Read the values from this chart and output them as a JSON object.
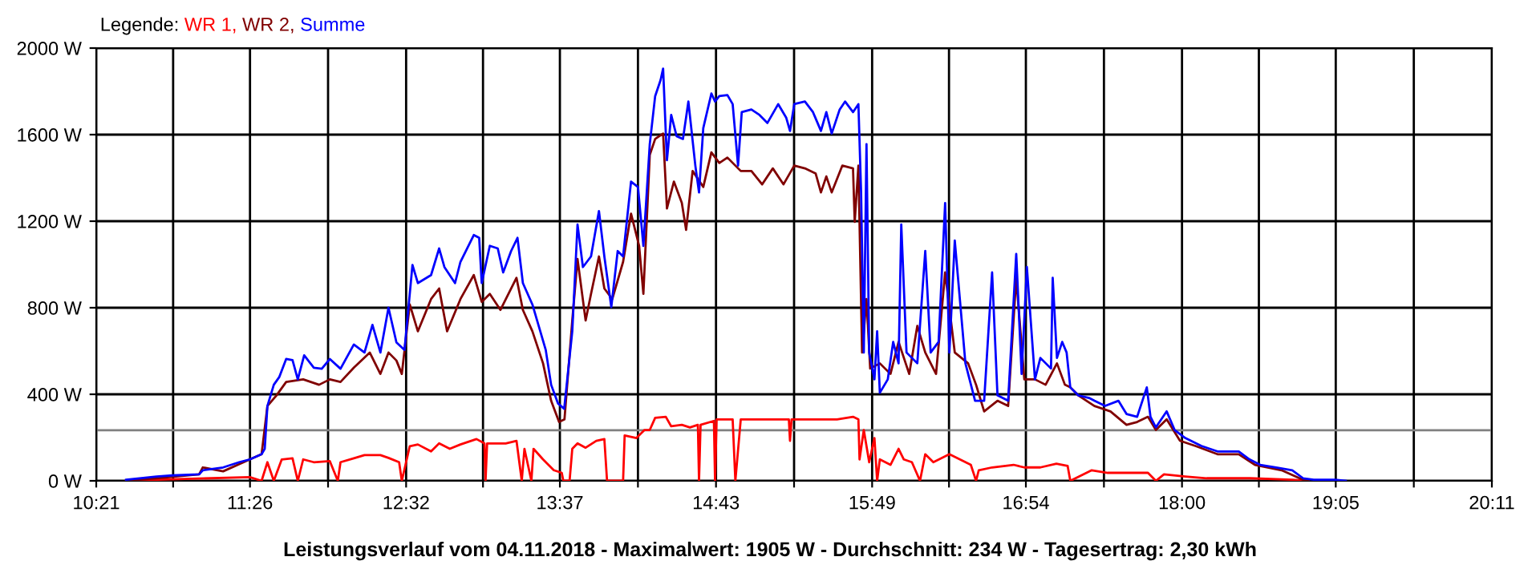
{
  "chart_data": {
    "type": "line",
    "title": "Leistungsverlauf vom 04.11.2018 - Maximalwert: 1905 W - Durchschnitt: 234 W - Tagesertrag: 2,30 kWh",
    "legend_title": "Legende:",
    "legend": "top left",
    "grid": true,
    "line_style": "solid",
    "xlim": [
      10.35,
      20.1833
    ],
    "xticks": [
      {
        "value": 10.35,
        "label": "10:21"
      },
      {
        "value": 10.8917,
        "label": null
      },
      {
        "value": 11.4333,
        "label": "11:26"
      },
      {
        "value": 11.9833,
        "label": null
      },
      {
        "value": 12.5333,
        "label": "12:32"
      },
      {
        "value": 13.075,
        "label": null
      },
      {
        "value": 13.6167,
        "label": "13:37"
      },
      {
        "value": 14.1667,
        "label": null
      },
      {
        "value": 14.7167,
        "label": "14:43"
      },
      {
        "value": 15.2667,
        "label": null
      },
      {
        "value": 15.8167,
        "label": "15:49"
      },
      {
        "value": 16.3583,
        "label": null
      },
      {
        "value": 16.9,
        "label": "16:54"
      },
      {
        "value": 17.45,
        "label": null
      },
      {
        "value": 18.0,
        "label": "18:00"
      },
      {
        "value": 18.5417,
        "label": null
      },
      {
        "value": 19.0833,
        "label": "19:05"
      },
      {
        "value": 19.6333,
        "label": null
      },
      {
        "value": 20.1833,
        "label": "20:11"
      }
    ],
    "ylim": [
      0,
      2000
    ],
    "yticks": [
      {
        "value": 0,
        "label": "0 W"
      },
      {
        "value": 400,
        "label": "400 W"
      },
      {
        "value": 800,
        "label": "800 W"
      },
      {
        "value": 1200,
        "label": "1200 W"
      },
      {
        "value": 1600,
        "label": "1600 W"
      },
      {
        "value": 2000,
        "label": "2000 W"
      }
    ],
    "ref_lines": [
      {
        "axis": "y",
        "value": 234,
        "color": "#808080"
      }
    ],
    "series": [
      {
        "name": "WR 1,",
        "color": "#ff0000",
        "x": [
          10.56,
          10.775,
          11.432,
          11.515,
          11.556,
          11.601,
          11.657,
          11.733,
          11.77,
          11.808,
          11.883,
          11.996,
          12.052,
          12.071,
          12.165,
          12.24,
          12.352,
          12.409,
          12.484,
          12.503,
          12.559,
          12.616,
          12.709,
          12.766,
          12.841,
          12.916,
          13.029,
          13.085,
          13.093,
          13.104,
          13.235,
          13.311,
          13.348,
          13.367,
          13.416,
          13.431,
          13.498,
          13.574,
          13.63,
          13.641,
          13.685,
          13.704,
          13.741,
          13.798,
          13.873,
          13.93,
          13.949,
          14.062,
          14.073,
          14.156,
          14.213,
          14.25,
          14.288,
          14.363,
          14.401,
          14.476,
          14.533,
          14.589,
          14.597,
          14.608,
          14.702,
          14.71,
          14.721,
          14.834,
          14.853,
          14.891,
          15.23,
          15.238,
          15.249,
          15.569,
          15.682,
          15.72,
          15.728,
          15.758,
          15.796,
          15.833,
          15.852,
          15.871,
          15.946,
          16.003,
          16.04,
          16.097,
          16.154,
          16.191,
          16.248,
          16.361,
          16.512,
          16.549,
          16.568,
          16.662,
          16.813,
          16.889,
          17.002,
          17.115,
          17.194,
          17.213,
          17.364,
          17.477,
          17.76,
          17.816,
          17.873,
          18.023,
          18.174,
          18.476,
          18.777,
          18.891
        ],
        "values": [
          0,
          5,
          17,
          0,
          86,
          0,
          99,
          104,
          0,
          99,
          86,
          91,
          0,
          86,
          104,
          119,
          119,
          106,
          86,
          0,
          160,
          168,
          136,
          173,
          148,
          168,
          193,
          173,
          0,
          173,
          173,
          185,
          0,
          148,
          0,
          148,
          99,
          49,
          37,
          0,
          0,
          148,
          173,
          153,
          185,
          193,
          0,
          0,
          210,
          198,
          235,
          235,
          291,
          296,
          252,
          259,
          247,
          259,
          0,
          259,
          277,
          0,
          284,
          284,
          0,
          284,
          284,
          185,
          284,
          284,
          296,
          284,
          99,
          235,
          86,
          198,
          0,
          99,
          74,
          148,
          99,
          86,
          0,
          123,
          86,
          123,
          74,
          0,
          49,
          62,
          74,
          62,
          62,
          79,
          69,
          0,
          49,
          37,
          37,
          0,
          30,
          20,
          12,
          12,
          5,
          0
        ]
      },
      {
        "name": "WR 2,",
        "color": "#800000",
        "x": [
          10.56,
          10.775,
          11.075,
          11.101,
          11.244,
          11.432,
          11.515,
          11.556,
          11.62,
          11.688,
          11.808,
          11.92,
          11.996,
          12.071,
          12.165,
          12.277,
          12.352,
          12.409,
          12.465,
          12.503,
          12.559,
          12.616,
          12.709,
          12.766,
          12.822,
          12.916,
          13.01,
          13.066,
          13.123,
          13.198,
          13.311,
          13.356,
          13.423,
          13.498,
          13.555,
          13.611,
          13.649,
          13.704,
          13.741,
          13.798,
          13.836,
          13.892,
          13.93,
          13.986,
          14.062,
          14.118,
          14.175,
          14.205,
          14.25,
          14.288,
          14.344,
          14.371,
          14.42,
          14.476,
          14.506,
          14.552,
          14.627,
          14.684,
          14.74,
          14.797,
          14.891,
          14.966,
          15.042,
          15.117,
          15.192,
          15.268,
          15.343,
          15.419,
          15.456,
          15.494,
          15.532,
          15.607,
          15.682,
          15.694,
          15.72,
          15.746,
          15.777,
          15.803,
          15.871,
          15.946,
          16.003,
          16.078,
          16.135,
          16.191,
          16.267,
          16.331,
          16.399,
          16.493,
          16.549,
          16.606,
          16.7,
          16.775,
          16.832,
          16.889,
          16.964,
          17.039,
          17.119,
          17.175,
          17.213,
          17.269,
          17.383,
          17.496,
          17.609,
          17.684,
          17.76,
          17.816,
          17.892,
          17.986,
          18.099,
          18.25,
          18.4,
          18.514,
          18.702,
          18.853,
          18.891
        ],
        "values": [
          0,
          12,
          30,
          62,
          44,
          99,
          123,
          346,
          395,
          457,
          469,
          444,
          469,
          457,
          523,
          593,
          494,
          593,
          556,
          494,
          815,
          691,
          840,
          889,
          691,
          840,
          951,
          827,
          864,
          790,
          938,
          790,
          691,
          543,
          370,
          272,
          284,
          741,
          1025,
          741,
          864,
          1037,
          889,
          840,
          1012,
          1235,
          1086,
          864,
          1506,
          1580,
          1605,
          1259,
          1383,
          1284,
          1160,
          1432,
          1358,
          1518,
          1469,
          1494,
          1432,
          1432,
          1370,
          1444,
          1370,
          1457,
          1444,
          1420,
          1333,
          1407,
          1333,
          1457,
          1444,
          1197,
          1457,
          593,
          840,
          519,
          543,
          494,
          642,
          494,
          716,
          593,
          494,
          963,
          593,
          543,
          444,
          321,
          370,
          346,
          938,
          469,
          469,
          444,
          543,
          444,
          432,
          395,
          346,
          321,
          259,
          272,
          296,
          235,
          284,
          185,
          160,
          123,
          123,
          74,
          49,
          5,
          0
        ]
      },
      {
        "name": "Summe",
        "color": "#0000ff",
        "x": [
          10.56,
          10.775,
          10.887,
          11.075,
          11.101,
          11.244,
          11.357,
          11.432,
          11.515,
          11.537,
          11.556,
          11.601,
          11.639,
          11.688,
          11.733,
          11.77,
          11.815,
          11.883,
          11.939,
          11.996,
          12.071,
          12.165,
          12.24,
          12.296,
          12.352,
          12.409,
          12.465,
          12.522,
          12.578,
          12.616,
          12.709,
          12.766,
          12.803,
          12.878,
          12.916,
          13.01,
          13.048,
          13.066,
          13.123,
          13.179,
          13.217,
          13.273,
          13.318,
          13.356,
          13.423,
          13.517,
          13.555,
          13.603,
          13.647,
          13.704,
          13.741,
          13.779,
          13.836,
          13.892,
          13.93,
          13.979,
          14.024,
          14.062,
          14.118,
          14.167,
          14.205,
          14.25,
          14.288,
          14.326,
          14.344,
          14.371,
          14.401,
          14.439,
          14.484,
          14.522,
          14.571,
          14.597,
          14.627,
          14.684,
          14.71,
          14.74,
          14.797,
          14.834,
          14.872,
          14.898,
          14.966,
          15.023,
          15.079,
          15.155,
          15.211,
          15.238,
          15.268,
          15.343,
          15.4,
          15.456,
          15.494,
          15.532,
          15.588,
          15.626,
          15.682,
          15.72,
          15.739,
          15.758,
          15.777,
          15.796,
          15.833,
          15.852,
          15.871,
          15.927,
          15.965,
          16.003,
          16.022,
          16.059,
          16.135,
          16.191,
          16.229,
          16.285,
          16.331,
          16.361,
          16.399,
          16.474,
          16.542,
          16.606,
          16.662,
          16.7,
          16.775,
          16.832,
          16.87,
          16.907,
          16.964,
          17.002,
          17.077,
          17.089,
          17.119,
          17.156,
          17.187,
          17.213,
          17.269,
          17.345,
          17.383,
          17.458,
          17.552,
          17.609,
          17.684,
          17.752,
          17.778,
          17.816,
          17.892,
          17.948,
          18.023,
          18.137,
          18.25,
          18.4,
          18.476,
          18.551,
          18.664,
          18.777,
          18.853,
          18.928,
          19.079,
          19.154
        ],
        "values": [
          5,
          20,
          25,
          30,
          49,
          62,
          86,
          99,
          123,
          148,
          346,
          444,
          479,
          563,
          558,
          469,
          580,
          523,
          518,
          563,
          518,
          630,
          593,
          721,
          593,
          800,
          640,
          605,
          998,
          914,
          951,
          1074,
          988,
          914,
          1012,
          1136,
          1123,
          914,
          1086,
          1074,
          963,
          1062,
          1123,
          914,
          815,
          605,
          444,
          358,
          333,
          691,
          1185,
          988,
          1037,
          1247,
          1037,
          803,
          1062,
          1037,
          1383,
          1358,
          1086,
          1556,
          1778,
          1852,
          1905,
          1482,
          1691,
          1593,
          1580,
          1753,
          1457,
          1333,
          1630,
          1790,
          1753,
          1778,
          1783,
          1741,
          1457,
          1704,
          1716,
          1691,
          1654,
          1741,
          1679,
          1617,
          1741,
          1753,
          1704,
          1617,
          1704,
          1605,
          1716,
          1753,
          1704,
          1741,
          1333,
          593,
          1556,
          593,
          469,
          691,
          407,
          469,
          642,
          543,
          1185,
          593,
          543,
          1062,
          593,
          642,
          1284,
          593,
          1111,
          543,
          370,
          370,
          963,
          395,
          370,
          1049,
          494,
          988,
          469,
          568,
          519,
          938,
          568,
          642,
          593,
          432,
          395,
          383,
          370,
          346,
          370,
          309,
          296,
          432,
          296,
          247,
          321,
          235,
          198,
          161,
          136,
          136,
          99,
          74,
          62,
          49,
          12,
          5,
          5,
          0
        ]
      }
    ]
  }
}
